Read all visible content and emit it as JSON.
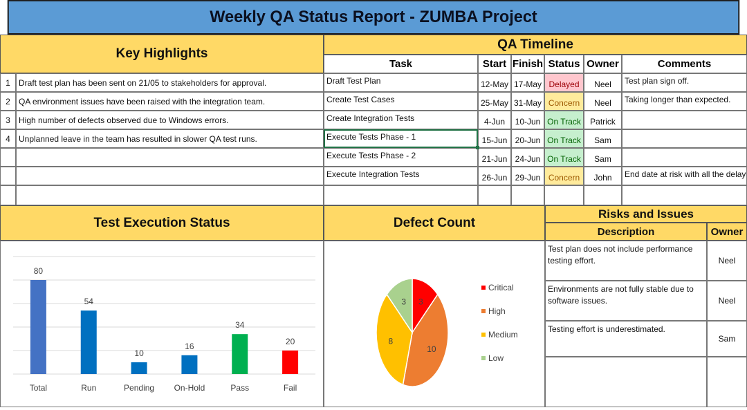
{
  "title": "Weekly QA Status Report - ZUMBA Project",
  "key_highlights": {
    "header": "Key Highlights",
    "items": [
      {
        "num": "1",
        "text": "Draft test plan has been sent on 21/05 to stakeholders for approval."
      },
      {
        "num": "2",
        "text": "QA environment issues have been raised with the integration team."
      },
      {
        "num": "3",
        "text": "High number of defects observed due to Windows errors."
      },
      {
        "num": "4",
        "text": "Unplanned leave in the team has resulted in slower QA test runs."
      }
    ]
  },
  "timeline": {
    "header": "QA Timeline",
    "columns": {
      "task": "Task",
      "start": "Start",
      "finish": "Finish",
      "status": "Status",
      "owner": "Owner",
      "comments": "Comments"
    },
    "rows": [
      {
        "task": "Draft Test Plan",
        "start": "12-May",
        "finish": "17-May",
        "status": "Delayed",
        "status_kind": "delayed",
        "owner": "Neel",
        "comment": "Test plan sign off."
      },
      {
        "task": "Create Test Cases",
        "start": "25-May",
        "finish": "31-May",
        "status": "Concern",
        "status_kind": "concern",
        "owner": "Neel",
        "comment": "Taking longer than expected."
      },
      {
        "task": "Create Integration Tests",
        "start": "4-Jun",
        "finish": "10-Jun",
        "status": "On Track",
        "status_kind": "ontrack",
        "owner": "Patrick",
        "comment": ""
      },
      {
        "task": "Execute Tests Phase - 1",
        "start": "15-Jun",
        "finish": "20-Jun",
        "status": "On Track",
        "status_kind": "ontrack",
        "owner": "Sam",
        "comment": ""
      },
      {
        "task": "Execute Tests Phase - 2",
        "start": "21-Jun",
        "finish": "24-Jun",
        "status": "On Track",
        "status_kind": "ontrack",
        "owner": "Sam",
        "comment": ""
      },
      {
        "task": "Execute Integration Tests",
        "start": "26-Jun",
        "finish": "29-Jun",
        "status": "Concern",
        "status_kind": "concern",
        "owner": "John",
        "comment": "End date at risk with all the delays."
      }
    ]
  },
  "test_execution": {
    "header": "Test Execution Status"
  },
  "defect_count": {
    "header": "Defect Count"
  },
  "risks": {
    "header": "Risks and Issues",
    "columns": {
      "description": "Description",
      "owner": "Owner"
    },
    "rows": [
      {
        "description": "Test plan does not include performance testing effort.",
        "owner": "Neel"
      },
      {
        "description": "Environments are not fully stable due to software issues.",
        "owner": "Neel"
      },
      {
        "description": "Testing effort is underestimated.",
        "owner": "Sam"
      }
    ]
  },
  "colors": {
    "title_bg": "#5b9bd5",
    "header_bg": "#ffd966",
    "delayed": "#ffc7ce",
    "concern": "#ffeb9c",
    "ontrack": "#c6efce"
  },
  "chart_data": [
    {
      "type": "bar",
      "categories": [
        "Total",
        "Run",
        "Pending",
        "On-Hold",
        "Pass",
        "Fail"
      ],
      "values": [
        80,
        54,
        10,
        16,
        34,
        20
      ],
      "colors": [
        "#4472c4",
        "#0070c0",
        "#0070c0",
        "#0070c0",
        "#00b050",
        "#ff0000"
      ],
      "title": "",
      "xlabel": "",
      "ylabel": "",
      "ylim": [
        0,
        100
      ],
      "grid": true,
      "data_labels": true
    },
    {
      "type": "pie",
      "labels": [
        "Critical",
        "High",
        "Medium",
        "Low"
      ],
      "values": [
        3,
        10,
        8,
        3
      ],
      "colors": [
        "#ff0000",
        "#ed7d31",
        "#ffc000",
        "#a9d18e"
      ],
      "title": "",
      "legend": "right",
      "data_labels": true
    }
  ]
}
